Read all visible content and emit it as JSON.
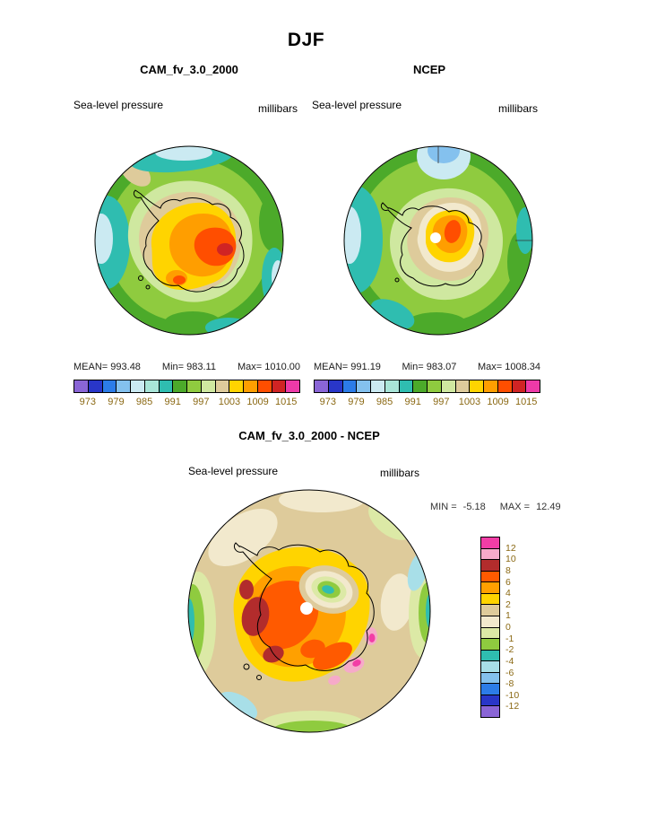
{
  "page_title": "DJF",
  "panels": {
    "cam": {
      "title": "CAM_fv_3.0_2000",
      "field_label": "Sea-level pressure",
      "units_label": "millibars",
      "stats": {
        "mean_label": "MEAN=",
        "mean_value": "993.48",
        "min_label": "Min=",
        "min_value": "983.11",
        "max_label": "Max=",
        "max_value": "1010.00"
      }
    },
    "ncep": {
      "title": "NCEP",
      "field_label": "Sea-level pressure",
      "units_label": "millibars",
      "stats": {
        "mean_label": "MEAN=",
        "mean_value": "991.19",
        "min_label": "Min=",
        "min_value": "983.07",
        "max_label": "Max=",
        "max_value": "1008.34"
      }
    },
    "diff": {
      "title": "CAM_fv_3.0_2000 - NCEP",
      "field_label": "Sea-level pressure",
      "units_label": "millibars",
      "stats": {
        "min_label": "MIN =",
        "min_value": "-5.18",
        "max_label": "MAX =",
        "max_value": "12.49"
      }
    }
  },
  "colorbars": {
    "pressure": {
      "colors": [
        "#8A65D6",
        "#2936C8",
        "#2C7CE8",
        "#84C1EE",
        "#CBEAF2",
        "#A9E5D8",
        "#2FBDB0",
        "#4CAA2A",
        "#8FCB3F",
        "#CFE8A0",
        "#DECB9B",
        "#FFD400",
        "#FF9E00",
        "#FF4E00",
        "#D02424",
        "#EE3AA8"
      ],
      "ticks": [
        "973",
        "979",
        "985",
        "991",
        "997",
        "1003",
        "1009",
        "1015"
      ]
    },
    "difference": {
      "colors": [
        "#F23DA6",
        "#F6AAC9",
        "#B22C2C",
        "#FF5A00",
        "#FFA000",
        "#FFD400",
        "#DECB9B",
        "#F2E9CD",
        "#DCE9A6",
        "#8FCB3F",
        "#2FBDB0",
        "#A8DFE8",
        "#84C1EE",
        "#2C7CE8",
        "#2936C8",
        "#8A65D6"
      ],
      "ticks": [
        "12",
        "10",
        "8",
        "6",
        "4",
        "2",
        "1",
        "0",
        "-1",
        "-2",
        "-4",
        "-6",
        "-8",
        "-10",
        "-12"
      ]
    }
  },
  "chart_data": [
    {
      "type": "heatmap",
      "subtype": "filled_contour_polar_map",
      "projection": "south_polar_stereographic",
      "title": "CAM_fv_3.0_2000",
      "season": "DJF",
      "variable": "Sea-level pressure",
      "units": "millibars",
      "stats": {
        "mean": 993.48,
        "min": 983.11,
        "max": 1010.0
      },
      "contour_interval_mb": 3,
      "labeled_levels": [
        973,
        979,
        985,
        991,
        997,
        1003,
        1009,
        1015
      ],
      "legend_position": "below",
      "description": "Circumpolar belt of low pressure (teal/cyan bands, about 979-991 mb) over the Southern Ocean surrounding high pressure (tan/yellow/orange/red, up to 1010 mb) over the Antarctic interior with a small dark-red maximum."
    },
    {
      "type": "heatmap",
      "subtype": "filled_contour_polar_map",
      "projection": "south_polar_stereographic",
      "title": "NCEP",
      "season": "DJF",
      "variable": "Sea-level pressure",
      "units": "millibars",
      "stats": {
        "mean": 991.19,
        "min": 983.07,
        "max": 1008.34
      },
      "contour_interval_mb": 3,
      "labeled_levels": [
        973,
        979,
        985,
        991,
        997,
        1003,
        1009,
        1015
      ],
      "legend_position": "below",
      "description": "Reanalysis counterpart: similar circumpolar low-pressure ring, broader teal low west of the peninsula, a pale-blue low patch at the top sector, and a more compact orange/red high over East Antarctica; white dot marks the pole."
    },
    {
      "type": "heatmap",
      "subtype": "filled_contour_polar_map",
      "projection": "south_polar_stereographic",
      "title": "CAM_fv_3.0_2000 - NCEP",
      "season": "DJF",
      "variable": "Sea-level pressure difference (model minus reanalysis)",
      "units": "millibars",
      "stats": {
        "min": -5.18,
        "max": 12.49
      },
      "levels": [
        -12,
        -10,
        -8,
        -6,
        -4,
        -2,
        -1,
        0,
        1,
        2,
        4,
        6,
        8,
        10,
        12
      ],
      "legend_position": "right",
      "description": "Positive bias (yellow/orange/red, locally above 12 mb with dark-red maxima over West Antarctica and pink/magenta spots in the lower-right sector) over most of the continent; small negative region (green/teal rings, down to about -5 mb) near the pole; weak negative bands around the map rim."
    }
  ]
}
